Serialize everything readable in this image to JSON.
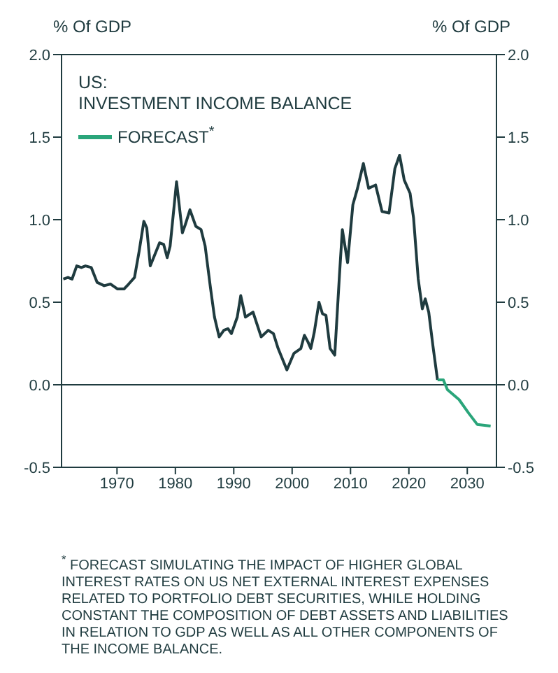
{
  "chart_data": {
    "type": "line",
    "title": "US:\nINVESTMENT INCOME BALANCE",
    "ylabel": "% Of GDP",
    "y2label": "% Of GDP",
    "xlim": [
      1960.5,
      2035
    ],
    "xticks": [
      1970,
      1980,
      1990,
      2000,
      2010,
      2020,
      2030
    ],
    "ylim": [
      -0.5,
      2.0
    ],
    "yticks": [
      {
        "value": -0.5,
        "label": "-0.5"
      },
      {
        "value": 0,
        "label": "0.0"
      },
      {
        "value": 0.5,
        "label": "0.5"
      },
      {
        "value": 1,
        "label": "1.0"
      },
      {
        "value": 1.5,
        "label": "1.5"
      },
      {
        "value": 2,
        "label": "2.0"
      }
    ],
    "y2lim": [
      -0.5,
      2.0
    ],
    "y2ticks": [
      {
        "value": -0.5,
        "label": "-0.5"
      },
      {
        "value": 0,
        "label": "0.0"
      },
      {
        "value": 0.5,
        "label": "0.5"
      },
      {
        "value": 1,
        "label": "1.0"
      },
      {
        "value": 1.5,
        "label": "1.5"
      },
      {
        "value": 2,
        "label": "2.0"
      }
    ],
    "grid": false,
    "legend": "top left",
    "marker": "none",
    "line_style": "solid",
    "ref_lines": [
      {
        "axis": "y",
        "value": 0,
        "color": "#1f3b3f"
      }
    ],
    "series": [
      {
        "color": "#1f3b3f",
        "x": [
          1960.8,
          1961.6,
          1962.3,
          1963.1,
          1963.9,
          1964.6,
          1965.6,
          1966.6,
          1967.8,
          1968.9,
          1970.1,
          1971.2,
          1972.0,
          1973.0,
          1973.8,
          1974.6,
          1975.1,
          1975.7,
          1976.5,
          1977.3,
          1978.0,
          1978.6,
          1979.1,
          1980.2,
          1981.2,
          1981.7,
          1982.5,
          1983.5,
          1984.4,
          1985.1,
          1986.0,
          1986.7,
          1987.5,
          1988.3,
          1989.0,
          1989.6,
          1990.6,
          1991.2,
          1992.0,
          1993.3,
          1994.7,
          1995.9,
          1996.8,
          1997.6,
          1999.1,
          2000.3,
          2001.5,
          2002.1,
          2002.7,
          2003.2,
          2003.8,
          2004.6,
          2005.2,
          2005.8,
          2006.5,
          2007.3,
          2008.1,
          2008.6,
          2009.5,
          2010.4,
          2011.2,
          2012.2,
          2013.1,
          2014.3,
          2015.4,
          2016.6,
          2017.6,
          2018.4,
          2019.2,
          2020.2,
          2020.8,
          2021.6,
          2022.3,
          2022.8,
          2023.4,
          2024.1,
          2024.9
        ],
        "values": [
          0.64,
          0.65,
          0.64,
          0.72,
          0.71,
          0.72,
          0.71,
          0.62,
          0.6,
          0.61,
          0.58,
          0.58,
          0.61,
          0.65,
          0.81,
          0.99,
          0.95,
          0.72,
          0.79,
          0.86,
          0.85,
          0.77,
          0.84,
          1.23,
          0.92,
          0.97,
          1.06,
          0.96,
          0.94,
          0.84,
          0.59,
          0.41,
          0.29,
          0.33,
          0.34,
          0.31,
          0.41,
          0.54,
          0.41,
          0.44,
          0.29,
          0.33,
          0.31,
          0.22,
          0.09,
          0.19,
          0.22,
          0.3,
          0.26,
          0.22,
          0.32,
          0.5,
          0.43,
          0.42,
          0.22,
          0.18,
          0.66,
          0.94,
          0.74,
          1.09,
          1.19,
          1.34,
          1.19,
          1.21,
          1.05,
          1.04,
          1.31,
          1.39,
          1.24,
          1.16,
          1.01,
          0.64,
          0.46,
          0.52,
          0.44,
          0.24,
          0.03
        ]
      },
      {
        "name": "FORECAST$^{*}$",
        "color": "#2aa57a",
        "x": [
          2024.9,
          2025.9,
          2026.6,
          2028.6,
          2030.2,
          2031.7,
          2034.0
        ],
        "values": [
          0.03,
          0.03,
          -0.03,
          -0.09,
          -0.17,
          -0.24,
          -0.25
        ]
      }
    ],
    "annotations": [
      "$^{*}$ FORECAST SIMULATING THE IMPACT OF HIGHER GLOBAL INTEREST RATES ON US NET EXTERNAL INTEREST EXPENSES RELATED TO PORTFOLIO DEBT SECURITIES, WHILE HOLDING CONSTANT THE COMPOSITION OF DEBT ASSETS AND LIABILITIES IN RELATION TO GDP AS WELL AS ALL OTHER COMPONENTS OF THE INCOME BALANCE."
    ]
  }
}
